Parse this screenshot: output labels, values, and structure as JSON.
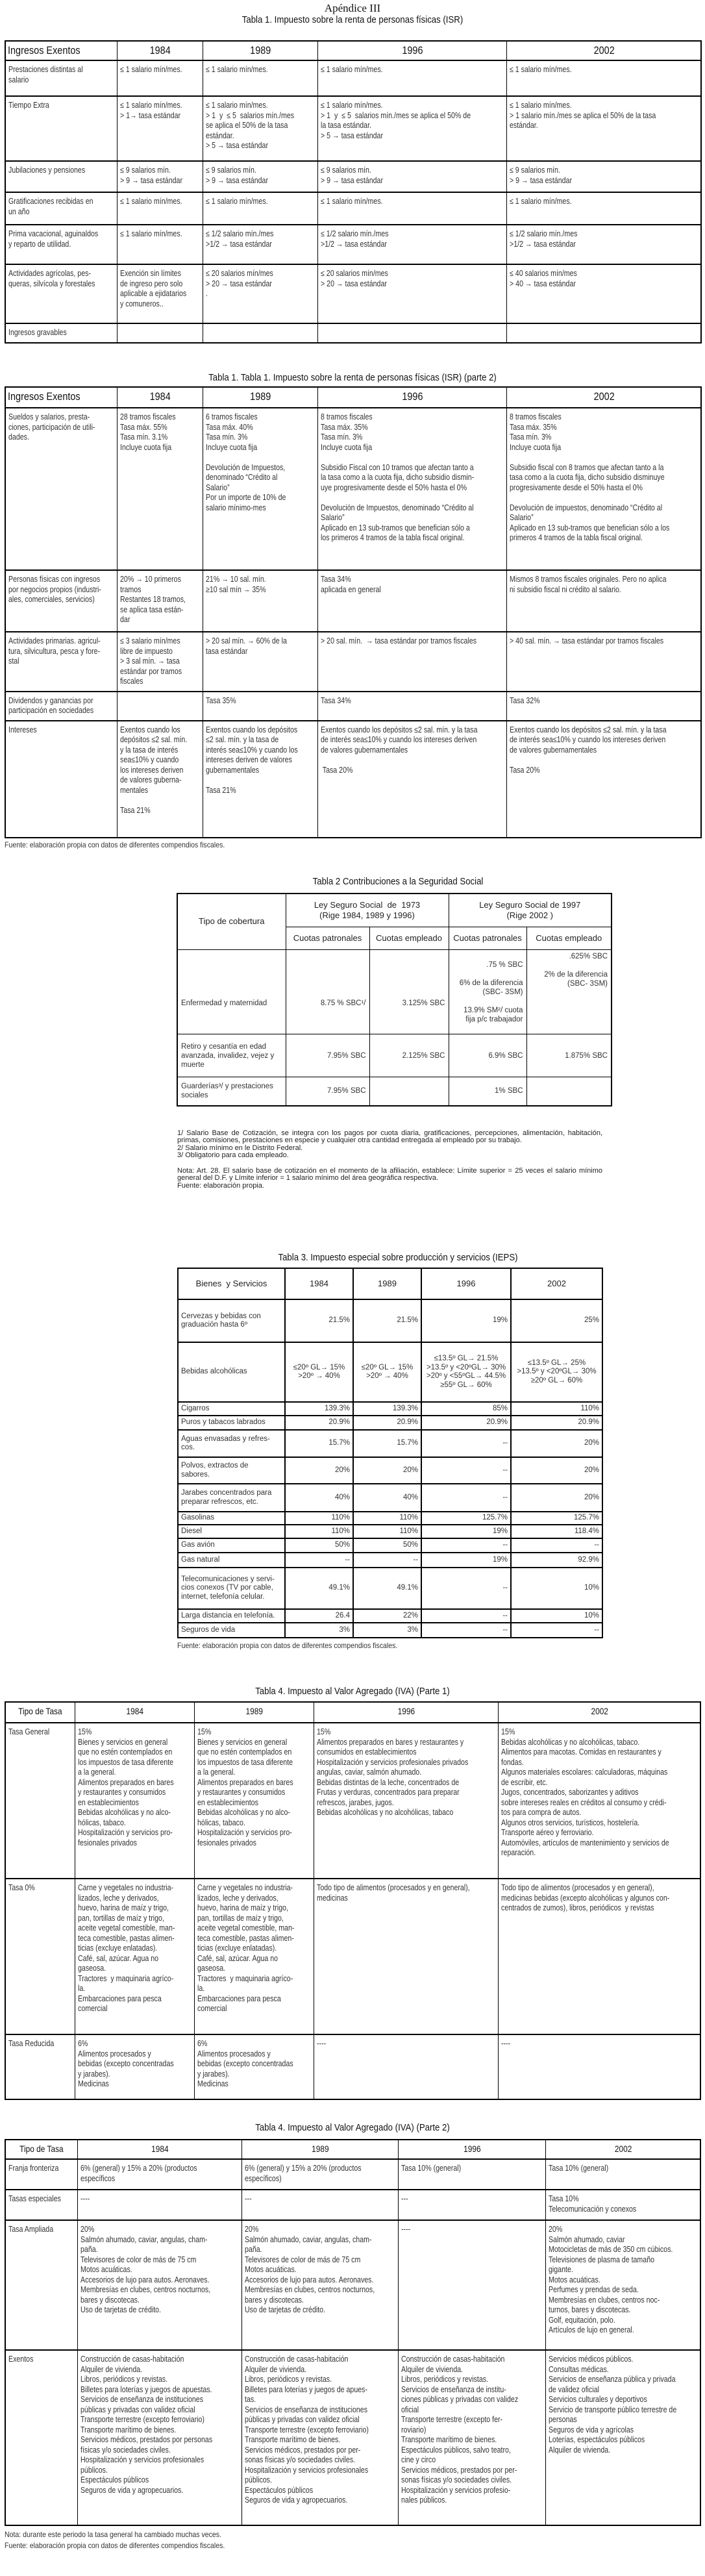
{
  "appendix_title": "Apéndice III",
  "t1": {
    "title": "Tabla 1. Impuesto sobre la renta de personas físicas (ISR)",
    "header": [
      "Ingresos Exentos",
      "1984",
      "1989",
      "1996",
      "2002"
    ],
    "rows": [
      {
        "label": "Prestaciones distintas al\nsalario",
        "cells": [
          "≤ 1 salario mín/mes.",
          "≤ 1 salario mín/mes.",
          "≤ 1 salario mín/mes.",
          "≤ 1 salario mín/mes."
        ]
      },
      {
        "label": "Tiempo Extra",
        "cells": [
          "≤ 1 salario mín/mes.\n> 1→ tasa estándar",
          "≤ 1 salario mín/mes.\n> 1  y  ≤ 5  salarios mín./mes\nse aplica el 50% de la tasa\nestándar.\n> 5 → tasa estándar",
          "≤ 1 salario mín/mes.\n> 1  y  ≤ 5  salarios mín./mes se aplica el 50% de\nla tasa estándar.\n> 5 → tasa estándar",
          "≤ 1 salario mín/mes.\n> 1 salario mín./mes se aplica el 50% de la tasa\nestándar."
        ]
      },
      {
        "label": "Jubilaciones y pensiones",
        "cells": [
          "≤ 9 salarios mín.\n> 9 → tasa estándar",
          "≤ 9 salarios mín.\n> 9 → tasa estándar",
          "≤ 9 salarios mín.\n> 9 → tasa estándar",
          "≤ 9 salarios mín.\n> 9 → tasa estándar"
        ]
      },
      {
        "label": "Gratificaciones recibidas en\nun año",
        "cells": [
          "≤ 1 salario mín/mes.",
          "≤ 1 salario mín/mes.",
          "≤ 1 salario mín/mes.",
          "≤ 1 salario mín/mes."
        ]
      },
      {
        "label": "Prima vacacional, aguinaldos\ny reparto de utilidad.",
        "cells": [
          "≤ 1 salario mín/mes.",
          "≤ 1/2 salario mín./mes\n>1/2 → tasa estándar",
          "≤ 1/2 salario mín./mes\n>1/2 → tasa estándar",
          "≤ 1/2 salario mín./mes\n>1/2 → tasa estándar"
        ]
      },
      {
        "label": "Actividades agrícolas, pes-\nqueras, silvícola y forestales",
        "cells": [
          "Exención sin límites\nde ingreso pero solo\naplicable a ejidatarios\ny comuneros..",
          "≤ 20 salarios mín/mes\n> 20 → tasa estándar\n.",
          "≤ 20 salarios mín/mes\n> 20 → tasa estándar",
          "≤ 40 salarios mín/mes\n> 40 → tasa estándar"
        ]
      },
      {
        "label": "Ingresos gravables",
        "cells": [
          "",
          "",
          "",
          ""
        ]
      }
    ]
  },
  "t1b": {
    "title": "Tabla 1. Tabla 1. Impuesto sobre la renta de personas físicas (ISR) (parte 2)",
    "header": [
      "Ingresos Exentos",
      "1984",
      "1989",
      "1996",
      "2002"
    ],
    "rows": [
      {
        "label": "Sueldos y salarios, presta-\nciones, participación de utili-\ndades.",
        "cells": [
          "28 tramos fiscales\nTasa máx. 55%\nTasa mín. 3.1%\nIncluye cuota fija",
          "6 tramos fiscales\nTasa máx. 40%\nTasa mín. 3%\nIncluye cuota fija\n\nDevolución de Impuestos,\ndenominado “Crédito al\nSalario”\nPor un importe de 10% de\nsalario mínimo-mes",
          "8 tramos fiscales\nTasa máx. 35%\nTasa mín. 3%\nIncluye cuota fija\n\nSubsidio Fiscal con 10 tramos que afectan tanto a\nla tasa como a la cuota fija, dicho subsidio dismin-\nuye progresivamente desde el 50% hasta el 0%\n\nDevolución de Impuestos, denominado “Crédito al\nSalario”\nAplicado en 13 sub-tramos que benefician sólo a\nlos primeros 4 tramos de la tabla fiscal original.",
          "8 tramos fiscales\nTasa máx. 35%\nTasa mín. 3%\nIncluye cuota fija\n\nSubsidio fiscal con 8 tramos que afectan tanto a la\ntasa como a la cuota fija, dicho subsidio disminuye\nprogresivamente desde el 50% hasta el 0%\n\nDevolución de impuestos, denominado “Crédito al\nSalario”\nAplicado en 13 sub-tramos que benefician sólo a los\nprimeros 4 tramos de la tabla fiscal original."
        ]
      },
      {
        "label": "Personas físicas con ingresos\npor negocios propios (industri-\nales, comerciales, servicios)",
        "cells": [
          "20% → 10 primeros\ntramos\nRestantes 18 tramos,\nse aplica tasa están-\ndar",
          "21% → 10 sal. mín.\n≥10 sal mín → 35%",
          "Tasa 34%\naplicada en general",
          "Mismos 8 tramos fiscales originales. Pero no aplica\nni subsidio fiscal ni crédito al salario."
        ]
      },
      {
        "label": "Actividades primarias. agricul-\ntura, silvicultura, pesca y fore-\nstal",
        "cells": [
          "≤ 3 salario mín/mes\nlibre de impuesto\n> 3 sal mín. → tasa\nestándar por tramos\nfiscales",
          "> 20 sal mín. → 60% de la\ntasa estándar",
          "> 20 sal. mín.  → tasa estándar por tramos fiscales",
          "> 40 sal. mín. → tasa estándar por tramos fiscales"
        ]
      },
      {
        "label": "Dividendos y ganancias por\nparticipación en sociedades",
        "cells": [
          "",
          "Tasa 35%",
          "Tasa 34%",
          "Tasa 32%"
        ]
      },
      {
        "label": "Intereses",
        "cells": [
          "Exentos cuando los\ndepósitos ≤2 sal. mín.\ny la tasa de interés\nsea≤10% y cuando\nlos intereses deriven\nde valores guberna-\nmentales\n\nTasa 21%",
          "Exentos cuando los depósitos\n≤2 sal. mín. y la tasa de\ninterés sea≤10% y cuando los\nintereses deriven de valores\ngubernamentales\n\nTasa 21%",
          "Exentos cuando los depósitos ≤2 sal. mín. y la tasa\nde interés sea≤10% y cuando los intereses deriven\nde valores gubernamentales\n\n Tasa 20%",
          "Exentos cuando los depósitos ≤2 sal. mín. y la tasa\nde interés sea≤10% y cuando los intereses deriven\nde valores gubernamentales\n\nTasa 20%"
        ]
      }
    ],
    "source": "Fuente: elaboración propia con datos de diferentes compendios fiscales."
  },
  "t2": {
    "title": "Tabla 2 Contribuciones a la Seguridad Social",
    "coverage_header": "Tipo de cobertura",
    "groups": [
      "Ley Seguro Social  de  1973\n(Rige 1984, 1989 y 1996)",
      "Ley Seguro Social de 1997\n(Rige 2002 )"
    ],
    "subheaders": [
      "Cuotas patronales",
      "Cuotas empleado",
      "Cuotas patronales",
      "Cuotas empleado"
    ],
    "rows": [
      {
        "label": "Enfermedad y maternidad",
        "cells": [
          "8.75 % SBC¹/",
          "3.125% SBC",
          ".75 % SBC\n\n6% de la diferencia\n(SBC- 3SM)\n\n13.9% SM²/ cuota\nfija p/c trabajador",
          ".625% SBC\n\n2% de la diferencia\n(SBC- 3SM)\n\n"
        ]
      },
      {
        "label": "Retiro y cesantía en edad\navanzada, invalidez, vejez y\nmuerte",
        "cells": [
          "7.95% SBC",
          "2.125% SBC",
          "6.9% SBC",
          "1.875% SBC"
        ]
      },
      {
        "label": "Guarderías³/ y prestaciones\nsociales",
        "cells": [
          "7.95% SBC",
          "",
          "1% SBC",
          ""
        ]
      }
    ],
    "notes": [
      "1/ Salario Base de Cotización, se integra con los pagos por cuota diaria, gratificaciones, percepciones, alimentación, habitación, primas, comisiones, prestaciones en especie y cualquier otra cantidad entregada al empleado por su trabajo.",
      "2/ Salario mínimo en le Distrito Federal.",
      "3/ Obligatorio para cada empleado.",
      "Nota: Art. 28. El salario base de cotización  en el momento de la afiliación, establece: Límite superior = 25 veces el salario mínimo general del D.F. y Límite inferior = 1 salario mínimo del área geográfica respectiva.",
      "Fuente: elaboración propia."
    ]
  },
  "t3": {
    "title": "Tabla 3. Impuesto especial sobre producción y servicios (IEPS)",
    "header": [
      "Bienes  y Servicios",
      "1984",
      "1989",
      "1996",
      "2002"
    ],
    "rows": [
      {
        "label": "Cervezas y bebidas con\ngraduación hasta 6º",
        "cells": [
          "21.5%",
          "21.5%",
          "19%",
          "25%"
        ]
      },
      {
        "label": "Bebidas alcohólicas",
        "cells": [
          "≤20º GL→ 15%\n>20º → 40%",
          "≤20º GL→ 15%\n>20º → 40%",
          "≤13.5º GL→ 21.5%\n>13.5º y <20ºGL→ 30%\n>20º y <55ºGL→ 44.5%\n≥55º GL→ 60%",
          "≤13.5º GL→ 25%\n>13.5º y <20ºGL→ 30%\n≥20º GL→ 60%"
        ]
      },
      {
        "label": "Cigarros",
        "cells": [
          "139.3%",
          "139.3%",
          "85%",
          "110%"
        ]
      },
      {
        "label": "Puros y tabacos labrados",
        "cells": [
          "20.9%",
          "20.9%",
          "20.9%",
          "20.9%"
        ]
      },
      {
        "label": "Aguas envasadas y refres-\ncos.",
        "cells": [
          "15.7%",
          "15.7%",
          "--",
          "20%"
        ]
      },
      {
        "label": "Polvos, extractos de\nsabores.",
        "cells": [
          "20%",
          "20%",
          "--",
          "20%"
        ]
      },
      {
        "label": "Jarabes concentrados para\npreparar refrescos, etc.",
        "cells": [
          "40%",
          "40%",
          "--",
          "20%"
        ]
      },
      {
        "label": "Gasolinas",
        "cells": [
          "110%",
          "110%",
          "125.7%",
          "125.7%"
        ]
      },
      {
        "label": "Diesel",
        "cells": [
          "110%",
          "110%",
          "19%",
          "118.4%"
        ]
      },
      {
        "label": "Gas avión",
        "cells": [
          "50%",
          "50%",
          "--",
          "--"
        ]
      },
      {
        "label": "Gas natural",
        "cells": [
          "--",
          "--",
          "19%",
          "92.9%"
        ]
      },
      {
        "label": "Telecomunicaciones y servi-\ncios conexos (TV por cable,\ninternet, telefonía celular.",
        "cells": [
          "49.1%",
          "49.1%",
          "--",
          "10%"
        ]
      },
      {
        "label": "Larga distancia en telefonía.",
        "cells": [
          "26.4",
          "22%",
          "--",
          "10%"
        ]
      },
      {
        "label": "Seguros de vida",
        "cells": [
          "3%",
          "3%",
          "--",
          "--"
        ]
      }
    ],
    "source": "Fuente: elaboración propia con datos de diferentes compendios fiscales."
  },
  "t4a": {
    "title": "Tabla 4. Impuesto al Valor Agregado (IVA) (Parte 1)",
    "header": [
      "Tipo de Tasa",
      "1984",
      "1989",
      "1996",
      "2002"
    ],
    "rows": [
      {
        "label": "Tasa General",
        "cells": [
          "15%\nBienes y servicios en general\nque no estén contemplados en\nlos impuestos de tasa diferente\na la general.\nAlimentos preparados en bares\ny restaurantes y consumidos\nen establecimientos\nBebidas alcohólicas y no alco-\nhólicas, tabaco.\nHospitalización y servicios pro-\nfesionales privados",
          "15%\nBienes y servicios en general\nque no estén contemplados en\nlos impuestos de tasa diferente\na la general.\nAlimentos preparados en bares\ny restaurantes y consumidos\nen establecimientos\nBebidas alcohólicas y no alco-\nhólicas, tabaco.\nHospitalización y servicios pro-\nfesionales privados",
          "15%\nAlimentos preparados en bares y restaurantes y\nconsumidos en establecimientos\nHospitalización y servicios profesionales privados\nangulas, caviar, salmón ahumado.\nBebidas distintas de la leche, concentrados de\nFrutas y verduras, concentrados para preparar\nrefrescos, jarabes, jugos.\nBebidas alcohólicas y no alcohólicas, tabaco",
          "15%\nBebidas alcohólicas y no alcohólicas, tabaco.\nAlimentos para macotas. Comidas en restaurantes y\nfondas.\nAlgunos materiales escolares: calculadoras, máquinas\nde escribir, etc.\nJugos, concentrados, saborizantes y aditivos\nsobre intereses reales en créditos al consumo y crédi-\ntos para compra de autos.\nAlgunos otros servicios, turísticos, hostelería.\nTransporte aéreo y ferroviario.\nAutomóviles, artículos de mantenimiento y servicios de\nreparación."
        ]
      },
      {
        "label": "Tasa 0%",
        "cells": [
          "Carne y vegetales no industria-\nlizados, leche y derivados,\nhuevo, harina de maíz y trigo,\npan, tortillas de maíz y trigo,\naceite vegetal comestible, man-\nteca comestible, pastas alimen-\nticias (excluye enlatadas).\nCafé, sal, azúcar. Agua no\ngaseosa.\nTractores  y maquinaria agríco-\nla.\nEmbarcaciones para pesca\ncomercial",
          "Carne y vegetales no industria-\nlizados, leche y derivados,\nhuevo, harina de maíz y trigo,\npan, tortillas de maíz y trigo,\naceite vegetal comestible, man-\nteca comestible, pastas alimen-\nticias (excluye enlatadas).\nCafé, sal, azúcar. Agua no\ngaseosa.\nTractores  y maquinaria agríco-\nla.\nEmbarcaciones para pesca\ncomercial",
          "Todo tipo de alimentos (procesados y en general),\nmedicinas",
          "Todo tipo de alimentos (procesados y en general),\nmedicinas bebidas (excepto alcohólicas y algunos con-\ncentrados de zumos), libros, periódicos  y revistas"
        ]
      },
      {
        "label": "Tasa Reducida",
        "cells": [
          "6%\nAlimentos procesados y\nbebidas (excepto concentradas\ny jarabes).\nMedicinas",
          "6%\nAlimentos procesados y\nbebidas (excepto concentradas\ny jarabes).\nMedicinas",
          "----",
          "----"
        ]
      }
    ]
  },
  "t4b": {
    "title": "Tabla 4. Impuesto al Valor Agregado (IVA) (Parte 2)",
    "header": [
      "Tipo de Tasa",
      "1984",
      "1989",
      "1996",
      "2002"
    ],
    "rows": [
      {
        "label": "Franja fronteriza",
        "cells": [
          "6% (general) y 15% a 20% (productos\nespecíficos",
          "6% (general) y 15% a 20% (productos\nespecíficos)",
          "Tasa 10% (general)",
          "Tasa 10% (general)"
        ]
      },
      {
        "label": "Tasas especiales",
        "cells": [
          "----",
          "---",
          "---",
          "Tasa 10%\nTelecomunicación y conexos"
        ]
      },
      {
        "label": "Tasa Ampliada",
        "cells": [
          "20%\nSalmón ahumado, caviar, angulas, cham-\npaña.\nTelevisores de color de más de 75 cm\nMotos acuáticas.\nAccesorios de lujo para autos. Aeronaves.\nMembresías en clubes, centros nocturnos,\nbares y discotecas.\nUso de tarjetas de crédito.",
          "20%\nSalmón ahumado, caviar, angulas, cham-\npaña.\nTelevisores de color de más de 75 cm\nMotos acuáticas.\nAccesorios de lujo para autos. Aeronaves.\nMembresías en clubes, centros nocturnos,\nbares y discotecas.\nUso de tarjetas de crédito.",
          "----",
          "20%\nSalmón ahumado, caviar\nMotocicletas de más de 350 cm cúbicos.\nTelevisiones de plasma de tamaño\ngigante.\nMotos acuáticas.\nPerfumes y prendas de seda.\nMembresías en clubes, centros noc-\nturnos, bares y discotecas.\nGolf, equitación, polo.\nArtículos de lujo en general."
        ]
      },
      {
        "label": "Exentos",
        "cells": [
          "Construcción de casas-habitación\nAlquiler de vivienda.\nLibros, periódicos y revistas.\nBilletes para loterías y juegos de apuestas.\nServicios de enseñanza de instituciones\npúblicas y privadas con validez oficial\nTransporte terrestre (excepto ferroviario)\nTransporte marítimo de bienes.\nServicios médicos, prestados por personas\nfísicas y/o sociedades civiles.\nHospitalización y servicios profesionales\npúblicos.\nEspectáculos públicos\nSeguros de vida y agropecuarios.",
          "Construcción de casas-habitación\nAlquiler de vivienda.\nLibros, periódicos y revistas.\nBilletes para loterías y juegos de apues-\ntas.\nServicios de enseñanza de instituciones\npúblicas y privadas con validez oficial\nTransporte terrestre (excepto ferroviario)\nTransporte marítimo de bienes.\nServicios médicos, prestados por per-\nsonas físicas y/o sociedades civiles.\nHospitalización y servicios profesionales\npúblicos.\nEspectáculos públicos\nSeguros de vida y agropecuarios.",
          "Construcción de casas-habitación\nAlquiler de vivienda.\nLibros, periódicos y revistas.\nServicios de enseñanza de institu-\nciones públicas y privadas con validez\noficial\nTransporte terrestre (excepto fer-\nroviario)\nTransporte marítimo de bienes.\nEspectáculos públicos, salvo teatro,\ncine y circo\nServicios médicos, prestados por per-\nsonas físicas y/o sociedades civiles.\nHospitalización y servicios profesio-\nnales públicos.",
          "Servicios médicos públicos.\nConsultas médicas.\nServicios de enseñanza pública y privada\nde validez oficial\nServicios culturales y deportivos\nServicio de transporte público terrestre de\npersonas\nSeguros de vida y agrícolas\nLoterías, espectáculos públicos\nAlquiler de vivienda."
        ]
      }
    ],
    "notes": [
      "Nota: durante este periodo la tasa general ha cambiado muchas veces.",
      "Fuente: elaboración propia con datos de diferentes compendios fiscales."
    ]
  }
}
